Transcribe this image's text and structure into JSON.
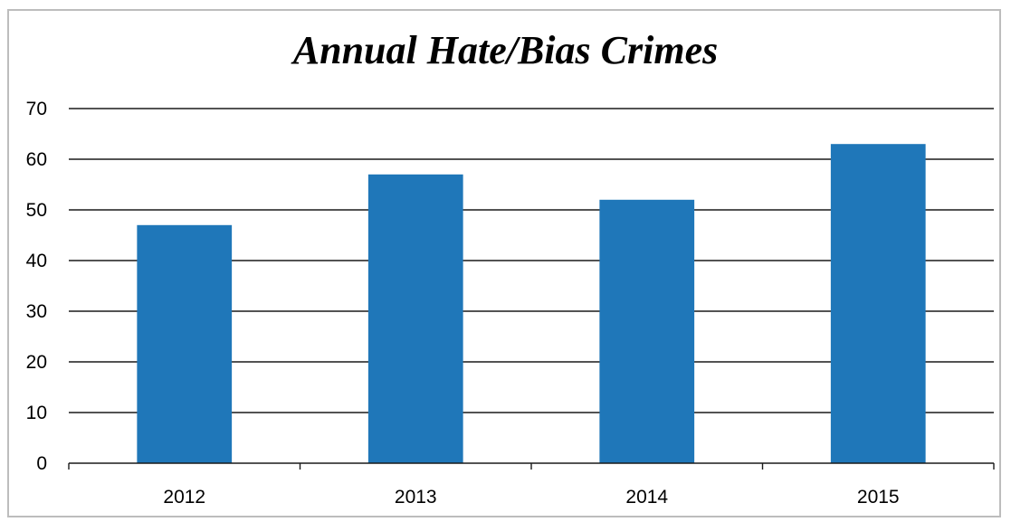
{
  "chart_data": {
    "type": "bar",
    "title": "Annual Hate/Bias Crimes",
    "xlabel": "",
    "ylabel": "",
    "categories": [
      "2012",
      "2013",
      "2014",
      "2015"
    ],
    "values": [
      47,
      57,
      52,
      63
    ],
    "ylim": [
      0,
      70
    ],
    "yticks": [
      0,
      10,
      20,
      30,
      40,
      50,
      60,
      70
    ],
    "grid": true,
    "legend": "none",
    "bar_color": "#1f77b9"
  }
}
